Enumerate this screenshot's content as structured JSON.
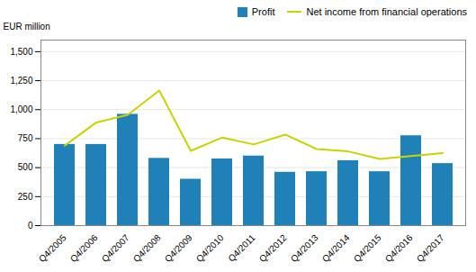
{
  "chart_data": {
    "type": "bar",
    "ylabel": "EUR million",
    "categories": [
      "Q4/2005",
      "Q4/2006",
      "Q4/2007",
      "Q4/2008",
      "Q4/2009",
      "Q4/2010",
      "Q4/2011",
      "Q4/2012",
      "Q4/2013",
      "Q4/2014",
      "Q4/2015",
      "Q4/2016",
      "Q4/2017"
    ],
    "series": [
      {
        "name": "Profit",
        "type": "bar",
        "color": "#2080b8",
        "values": [
          700,
          700,
          960,
          580,
          400,
          575,
          600,
          460,
          465,
          560,
          465,
          775,
          535
        ]
      },
      {
        "name": "Net income from financial operations",
        "type": "line",
        "color": "#c8d400",
        "values": [
          690,
          890,
          955,
          1165,
          645,
          760,
          700,
          785,
          660,
          640,
          575,
          600,
          625
        ]
      }
    ],
    "ylim": [
      0,
      1600
    ],
    "yticks": [
      0,
      250,
      500,
      750,
      1000,
      1250,
      1500
    ],
    "grid": true,
    "legend": "upper right"
  }
}
